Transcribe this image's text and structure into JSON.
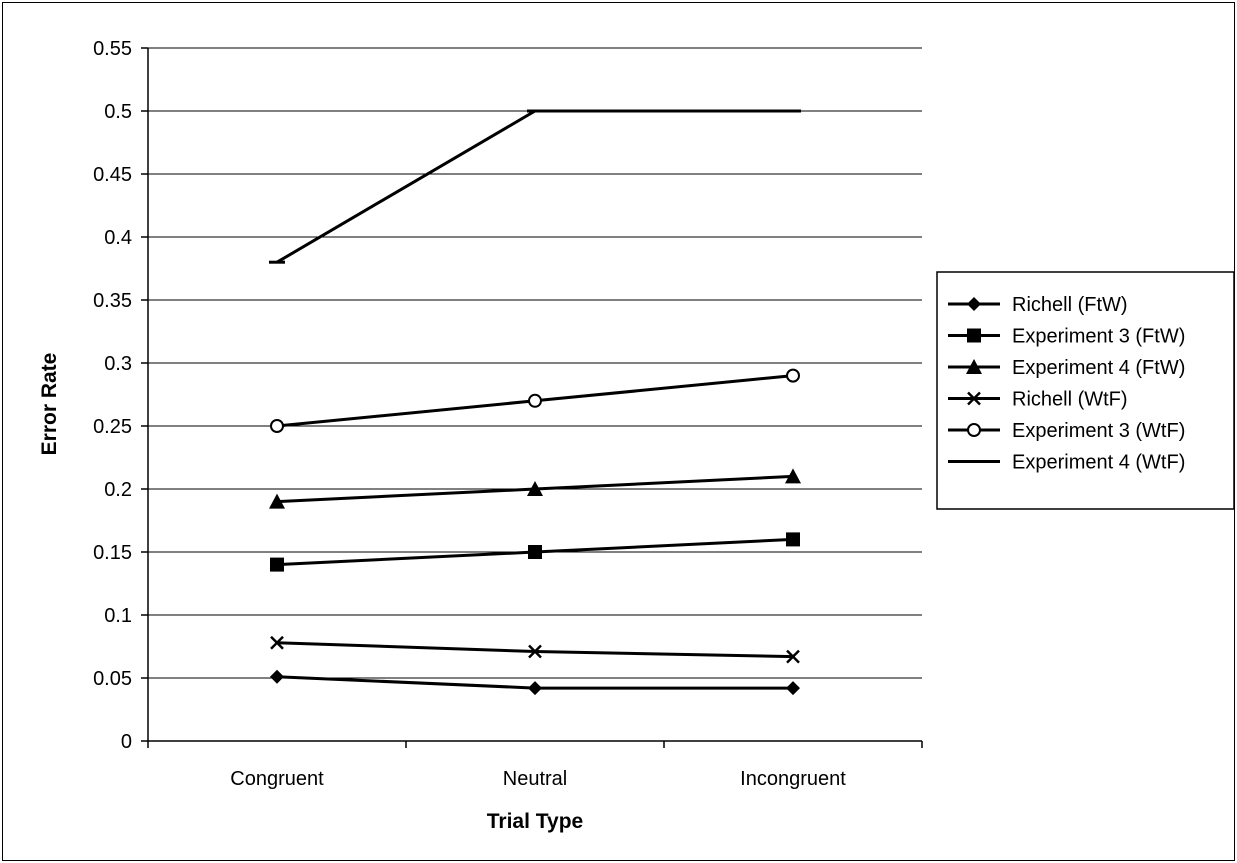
{
  "chart_data": {
    "type": "line",
    "xlabel": "Trial Type",
    "ylabel": "Error Rate",
    "categories": [
      "Congruent",
      "Neutral",
      "Incongruent"
    ],
    "ylim": [
      0,
      0.55
    ],
    "yticks": [
      0,
      0.05,
      0.1,
      0.15,
      0.2,
      0.25,
      0.3,
      0.35,
      0.4,
      0.45,
      0.5,
      0.55
    ],
    "ytick_labels": [
      "0",
      "0.05",
      "0.1",
      "0.15",
      "0.2",
      "0.25",
      "0.3",
      "0.35",
      "0.4",
      "0.45",
      "0.5",
      "0.55"
    ],
    "grid": "horizontal",
    "legend_position": "right",
    "series": [
      {
        "name": "Richell (FtW)",
        "marker": "diamond",
        "values": [
          0.051,
          0.042,
          0.042
        ]
      },
      {
        "name": "Experiment 3 (FtW)",
        "marker": "square",
        "values": [
          0.14,
          0.15,
          0.16
        ]
      },
      {
        "name": "Experiment 4 (FtW)",
        "marker": "triangle",
        "values": [
          0.19,
          0.2,
          0.21
        ]
      },
      {
        "name": "Richell (WtF)",
        "marker": "x",
        "values": [
          0.078,
          0.071,
          0.067
        ]
      },
      {
        "name": "Experiment 3 (WtF)",
        "marker": "circle-open",
        "values": [
          0.25,
          0.27,
          0.29
        ]
      },
      {
        "name": "Experiment 4 (WtF)",
        "marker": "dash",
        "values": [
          0.38,
          0.5,
          0.5
        ]
      }
    ]
  }
}
